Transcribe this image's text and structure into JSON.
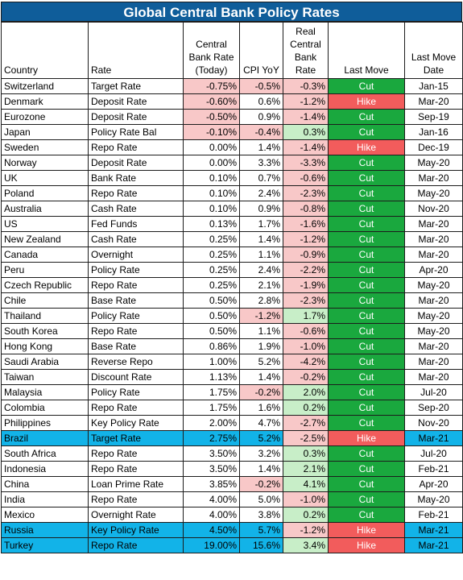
{
  "title": "Global Central Bank Policy Rates",
  "headers": {
    "country": "Country",
    "rate": "Rate",
    "cb_rate": "Central Bank Rate (Today)",
    "cpi": "CPI YoY",
    "real_rate": "Real Central Bank Rate",
    "last_move": "Last Move",
    "last_move_date": "Last Move Date"
  },
  "colors": {
    "title_bg": "#0f5d9a",
    "negative_fill": "#f8c8c8",
    "positive_fill": "#c8eec8",
    "cut_fill": "#1aa83e",
    "hike_fill": "#f25c5c",
    "highlight_row": "#12b3e8"
  },
  "rows": [
    {
      "country": "Switzerland",
      "rate": "Target Rate",
      "cb_rate": "-0.75%",
      "cpi": "-0.5%",
      "real_rate": "-0.3%",
      "last_move": "Cut",
      "date": "Jan-15",
      "highlight": false
    },
    {
      "country": "Denmark",
      "rate": "Deposit Rate",
      "cb_rate": "-0.60%",
      "cpi": "0.6%",
      "real_rate": "-1.2%",
      "last_move": "Hike",
      "date": "Mar-20",
      "highlight": false
    },
    {
      "country": "Eurozone",
      "rate": "Deposit Rate",
      "cb_rate": "-0.50%",
      "cpi": "0.9%",
      "real_rate": "-1.4%",
      "last_move": "Cut",
      "date": "Sep-19",
      "highlight": false
    },
    {
      "country": "Japan",
      "rate": "Policy Rate Bal",
      "cb_rate": "-0.10%",
      "cpi": "-0.4%",
      "real_rate": "0.3%",
      "last_move": "Cut",
      "date": "Jan-16",
      "highlight": false
    },
    {
      "country": "Sweden",
      "rate": "Repo Rate",
      "cb_rate": "0.00%",
      "cpi": "1.4%",
      "real_rate": "-1.4%",
      "last_move": "Hike",
      "date": "Dec-19",
      "highlight": false
    },
    {
      "country": "Norway",
      "rate": "Deposit Rate",
      "cb_rate": "0.00%",
      "cpi": "3.3%",
      "real_rate": "-3.3%",
      "last_move": "Cut",
      "date": "May-20",
      "highlight": false
    },
    {
      "country": "UK",
      "rate": "Bank Rate",
      "cb_rate": "0.10%",
      "cpi": "0.7%",
      "real_rate": "-0.6%",
      "last_move": "Cut",
      "date": "Mar-20",
      "highlight": false
    },
    {
      "country": "Poland",
      "rate": "Repo Rate",
      "cb_rate": "0.10%",
      "cpi": "2.4%",
      "real_rate": "-2.3%",
      "last_move": "Cut",
      "date": "May-20",
      "highlight": false
    },
    {
      "country": "Australia",
      "rate": "Cash Rate",
      "cb_rate": "0.10%",
      "cpi": "0.9%",
      "real_rate": "-0.8%",
      "last_move": "Cut",
      "date": "Nov-20",
      "highlight": false
    },
    {
      "country": "US",
      "rate": "Fed Funds",
      "cb_rate": "0.13%",
      "cpi": "1.7%",
      "real_rate": "-1.6%",
      "last_move": "Cut",
      "date": "Mar-20",
      "highlight": false
    },
    {
      "country": "New Zealand",
      "rate": "Cash Rate",
      "cb_rate": "0.25%",
      "cpi": "1.4%",
      "real_rate": "-1.2%",
      "last_move": "Cut",
      "date": "Mar-20",
      "highlight": false
    },
    {
      "country": "Canada",
      "rate": "Overnight",
      "cb_rate": "0.25%",
      "cpi": "1.1%",
      "real_rate": "-0.9%",
      "last_move": "Cut",
      "date": "Mar-20",
      "highlight": false
    },
    {
      "country": "Peru",
      "rate": "Policy Rate",
      "cb_rate": "0.25%",
      "cpi": "2.4%",
      "real_rate": "-2.2%",
      "last_move": "Cut",
      "date": "Apr-20",
      "highlight": false
    },
    {
      "country": "Czech Republic",
      "rate": "Repo Rate",
      "cb_rate": "0.25%",
      "cpi": "2.1%",
      "real_rate": "-1.9%",
      "last_move": "Cut",
      "date": "May-20",
      "highlight": false
    },
    {
      "country": "Chile",
      "rate": "Base Rate",
      "cb_rate": "0.50%",
      "cpi": "2.8%",
      "real_rate": "-2.3%",
      "last_move": "Cut",
      "date": "Mar-20",
      "highlight": false
    },
    {
      "country": "Thailand",
      "rate": "Policy Rate",
      "cb_rate": "0.50%",
      "cpi": "-1.2%",
      "real_rate": "1.7%",
      "last_move": "Cut",
      "date": "May-20",
      "highlight": false
    },
    {
      "country": "South Korea",
      "rate": "Repo Rate",
      "cb_rate": "0.50%",
      "cpi": "1.1%",
      "real_rate": "-0.6%",
      "last_move": "Cut",
      "date": "May-20",
      "highlight": false
    },
    {
      "country": "Hong Kong",
      "rate": "Base Rate",
      "cb_rate": "0.86%",
      "cpi": "1.9%",
      "real_rate": "-1.0%",
      "last_move": "Cut",
      "date": "Mar-20",
      "highlight": false
    },
    {
      "country": "Saudi Arabia",
      "rate": "Reverse Repo",
      "cb_rate": "1.00%",
      "cpi": "5.2%",
      "real_rate": "-4.2%",
      "last_move": "Cut",
      "date": "Mar-20",
      "highlight": false
    },
    {
      "country": "Taiwan",
      "rate": "Discount Rate",
      "cb_rate": "1.13%",
      "cpi": "1.4%",
      "real_rate": "-0.2%",
      "last_move": "Cut",
      "date": "Mar-20",
      "highlight": false
    },
    {
      "country": "Malaysia",
      "rate": "Policy Rate",
      "cb_rate": "1.75%",
      "cpi": "-0.2%",
      "real_rate": "2.0%",
      "last_move": "Cut",
      "date": "Jul-20",
      "highlight": false
    },
    {
      "country": "Colombia",
      "rate": "Repo Rate",
      "cb_rate": "1.75%",
      "cpi": "1.6%",
      "real_rate": "0.2%",
      "last_move": "Cut",
      "date": "Sep-20",
      "highlight": false
    },
    {
      "country": "Philippines",
      "rate": "Key Policy Rate",
      "cb_rate": "2.00%",
      "cpi": "4.7%",
      "real_rate": "-2.7%",
      "last_move": "Cut",
      "date": "Nov-20",
      "highlight": false
    },
    {
      "country": "Brazil",
      "rate": "Target Rate",
      "cb_rate": "2.75%",
      "cpi": "5.2%",
      "real_rate": "-2.5%",
      "last_move": "Hike",
      "date": "Mar-21",
      "highlight": true
    },
    {
      "country": "South Africa",
      "rate": "Repo Rate",
      "cb_rate": "3.50%",
      "cpi": "3.2%",
      "real_rate": "0.3%",
      "last_move": "Cut",
      "date": "Jul-20",
      "highlight": false
    },
    {
      "country": "Indonesia",
      "rate": "Repo Rate",
      "cb_rate": "3.50%",
      "cpi": "1.4%",
      "real_rate": "2.1%",
      "last_move": "Cut",
      "date": "Feb-21",
      "highlight": false
    },
    {
      "country": "China",
      "rate": "Loan Prime Rate",
      "cb_rate": "3.85%",
      "cpi": "-0.2%",
      "real_rate": "4.1%",
      "last_move": "Cut",
      "date": "Apr-20",
      "highlight": false
    },
    {
      "country": "India",
      "rate": "Repo Rate",
      "cb_rate": "4.00%",
      "cpi": "5.0%",
      "real_rate": "-1.0%",
      "last_move": "Cut",
      "date": "May-20",
      "highlight": false
    },
    {
      "country": "Mexico",
      "rate": "Overnight Rate",
      "cb_rate": "4.00%",
      "cpi": "3.8%",
      "real_rate": "0.2%",
      "last_move": "Cut",
      "date": "Feb-21",
      "highlight": false
    },
    {
      "country": "Russia",
      "rate": "Key Policy Rate",
      "cb_rate": "4.50%",
      "cpi": "5.7%",
      "real_rate": "-1.2%",
      "last_move": "Hike",
      "date": "Mar-21",
      "highlight": true
    },
    {
      "country": "Turkey",
      "rate": "Repo Rate",
      "cb_rate": "19.00%",
      "cpi": "15.6%",
      "real_rate": "3.4%",
      "last_move": "Hike",
      "date": "Mar-21",
      "highlight": true
    }
  ]
}
